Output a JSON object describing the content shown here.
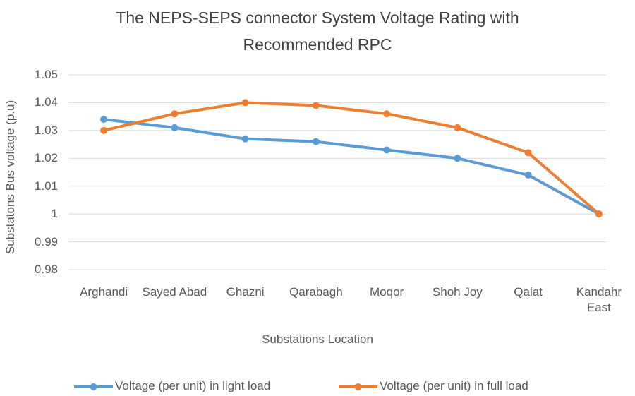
{
  "chart_data": {
    "type": "line",
    "title": "The NEPS-SEPS connector System Voltage Rating with Recommended RPC",
    "x_label": "Substations Location",
    "y_label": "Substatons Bus voltage (p.u)",
    "categories": [
      "Arghandi",
      "Sayed Abad",
      "Ghazni",
      "Qarabagh",
      "Moqor",
      "Shoh Joy",
      "Qalat",
      "Kandahr East"
    ],
    "series": [
      {
        "name": "Voltage (per unit) in light load",
        "color": "#5b9bd5",
        "values": [
          1.034,
          1.031,
          1.027,
          1.026,
          1.023,
          1.02,
          1.014,
          1.0
        ]
      },
      {
        "name": "Voltage (per unit) in full load",
        "color": "#ed7d31",
        "values": [
          1.03,
          1.036,
          1.04,
          1.039,
          1.036,
          1.031,
          1.022,
          1.0
        ]
      }
    ],
    "ylim": [
      0.98,
      1.05
    ],
    "yticks": [
      0.98,
      0.99,
      1,
      1.01,
      1.02,
      1.03,
      1.04,
      1.05
    ],
    "grid": true,
    "legend": "bottom"
  }
}
